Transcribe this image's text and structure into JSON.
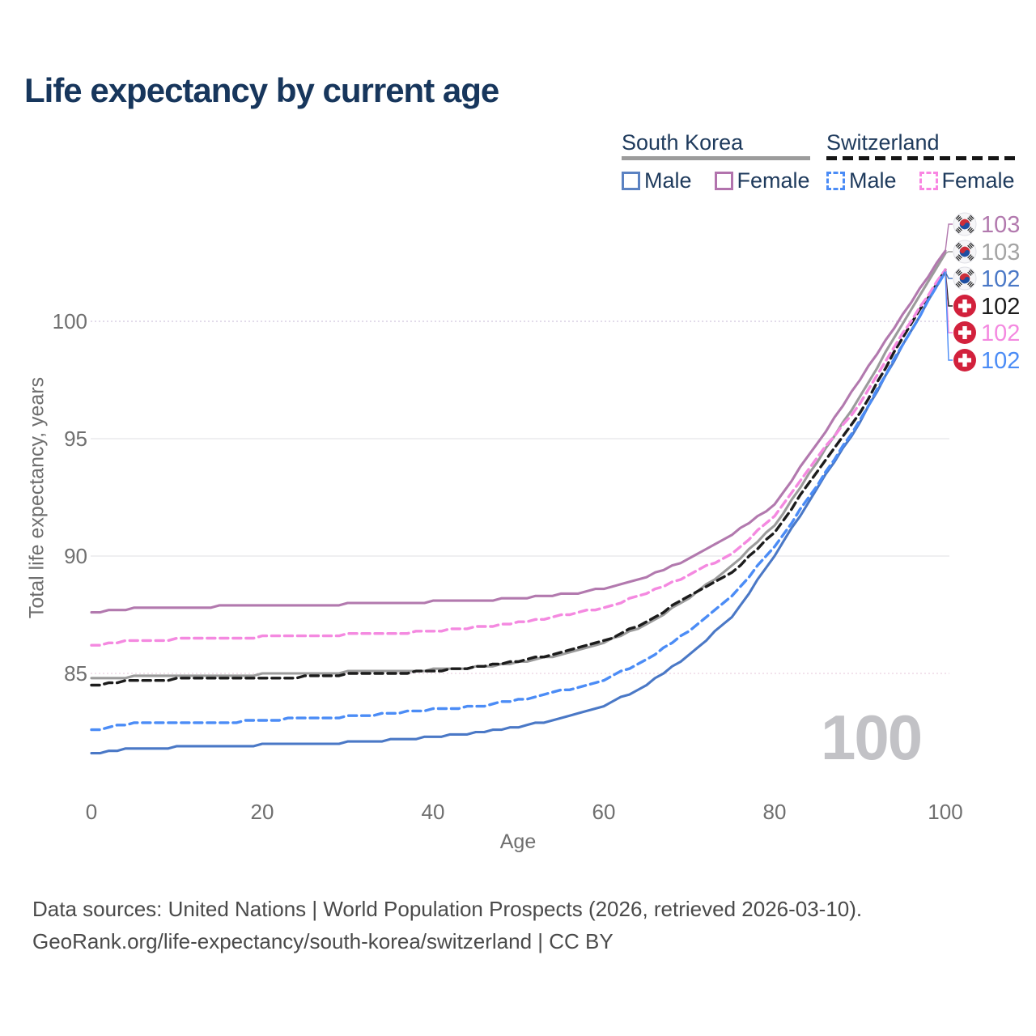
{
  "title": "Life expectancy by current age",
  "legend": {
    "groups": [
      {
        "name": "South Korea",
        "line_style": "solid",
        "underline_color": "#9c9c9c",
        "items": [
          {
            "label": "Male",
            "color": "#5b82c2",
            "dashed": false
          },
          {
            "label": "Female",
            "color": "#b273ad",
            "dashed": false
          }
        ]
      },
      {
        "name": "Switzerland",
        "line_style": "dashed",
        "underline_color": "#151515",
        "items": [
          {
            "label": "Male",
            "color": "#4b8cf6",
            "dashed": true
          },
          {
            "label": "Female",
            "color": "#f986e2",
            "dashed": true
          }
        ]
      }
    ]
  },
  "chart_data": {
    "type": "line",
    "title": "Life expectancy by current age",
    "xlabel": "Age",
    "ylabel": "Total life expectancy, years",
    "xlim": [
      0,
      100
    ],
    "ylim": [
      81,
      103.5
    ],
    "xticks": [
      0,
      20,
      40,
      60,
      80,
      100
    ],
    "yticks": [
      85,
      90,
      95,
      100
    ],
    "grid": "horizontal",
    "legend_position": "top-right",
    "watermark": "100",
    "ages": [
      0,
      5,
      10,
      15,
      20,
      25,
      30,
      35,
      40,
      45,
      50,
      55,
      60,
      65,
      70,
      75,
      80,
      85,
      90,
      95,
      100
    ],
    "series": [
      {
        "name": "South Korea — Female",
        "country": "South Korea",
        "sex": "Female",
        "flag": "kr",
        "color": "#b279ae",
        "label_color": "#b279ae",
        "dashed": false,
        "end_label": "103",
        "values": [
          87.6,
          87.75,
          87.8,
          87.85,
          87.85,
          87.9,
          87.95,
          88.0,
          88.05,
          88.1,
          88.2,
          88.35,
          88.6,
          89.1,
          89.9,
          90.9,
          92.2,
          94.8,
          97.5,
          100.3,
          103.0
        ]
      },
      {
        "name": "South Korea — Both sexes",
        "country": "South Korea",
        "sex": "Both",
        "flag": "kr",
        "color": "#9b9b9b",
        "label_color": "#a4a4a4",
        "dashed": false,
        "end_label": "103",
        "values": [
          84.75,
          84.85,
          84.9,
          84.9,
          84.95,
          85.0,
          85.05,
          85.1,
          85.15,
          85.25,
          85.45,
          85.8,
          86.3,
          87.1,
          88.2,
          89.6,
          91.3,
          94.0,
          96.8,
          99.9,
          102.9
        ]
      },
      {
        "name": "South Korea — Male",
        "country": "South Korea",
        "sex": "Male",
        "flag": "kr",
        "color": "#4a78c6",
        "label_color": "#4a78c6",
        "dashed": false,
        "end_label": "102",
        "values": [
          81.6,
          81.8,
          81.85,
          81.9,
          81.95,
          82.0,
          82.05,
          82.15,
          82.3,
          82.45,
          82.7,
          83.1,
          83.6,
          84.5,
          85.8,
          87.4,
          90.0,
          92.9,
          95.7,
          99.0,
          102.1
        ]
      },
      {
        "name": "Switzerland — Both sexes",
        "country": "Switzerland",
        "sex": "Both",
        "flag": "ch",
        "color": "#1c1c1c",
        "label_color": "#1b1b1b",
        "dashed": true,
        "end_label": "102",
        "values": [
          84.5,
          84.7,
          84.75,
          84.8,
          84.8,
          84.85,
          84.95,
          85.0,
          85.1,
          85.25,
          85.5,
          85.9,
          86.35,
          87.2,
          88.3,
          89.3,
          91.0,
          93.6,
          96.1,
          99.3,
          102.2
        ]
      },
      {
        "name": "Switzerland — Female",
        "country": "Switzerland",
        "sex": "Female",
        "flag": "ch",
        "color": "#f489e0",
        "label_color": "#f489e0",
        "dashed": true,
        "end_label": "102",
        "values": [
          86.2,
          86.4,
          86.45,
          86.5,
          86.55,
          86.6,
          86.65,
          86.7,
          86.8,
          86.95,
          87.15,
          87.45,
          87.8,
          88.4,
          89.2,
          90.1,
          91.7,
          94.2,
          96.5,
          99.5,
          102.2
        ]
      },
      {
        "name": "Switzerland — Male",
        "country": "Switzerland",
        "sex": "Male",
        "flag": "ch",
        "color": "#4b8cf6",
        "label_color": "#4b8cf6",
        "dashed": true,
        "end_label": "102",
        "values": [
          82.6,
          82.85,
          82.9,
          82.9,
          83.0,
          83.1,
          83.15,
          83.3,
          83.45,
          83.6,
          83.85,
          84.25,
          84.7,
          85.6,
          86.8,
          88.3,
          90.4,
          93.0,
          95.8,
          99.0,
          102.1
        ]
      }
    ]
  },
  "footer": {
    "line1": "Data sources: United Nations | World Population Prospects (2026, retrieved 2026-03-10).",
    "line2": "GeoRank.org/life-expectancy/south-korea/switzerland | CC BY"
  }
}
